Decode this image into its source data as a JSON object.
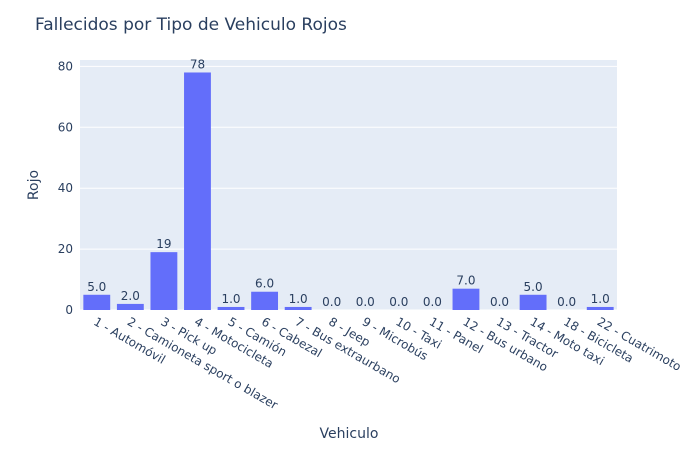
{
  "chart_data": {
    "type": "bar",
    "title": "Fallecidos por Tipo de Vehiculo Rojos",
    "xlabel": "Vehiculo",
    "ylabel": "Rojo",
    "categories": [
      "1 - Automóvil",
      "2 - Camioneta sport o blazer",
      "3 - Pick up",
      "4 - Motocicleta",
      "5 - Camión",
      "6 - Cabezal",
      "7 - Bus extraurbano",
      "8 - Jeep",
      "9 - Microbús",
      "10 - Taxi",
      "11 - Panel",
      "12 - Bus urbano",
      "13 - Tractor",
      "14 - Moto taxi",
      "18 - Bicicleta",
      "22 - Cuatrimoto"
    ],
    "values": [
      5,
      2,
      19,
      78,
      1,
      6,
      1,
      0,
      0,
      0,
      0,
      7,
      0,
      5,
      0,
      1
    ],
    "value_labels": [
      "5.0",
      "2.0",
      "19",
      "78",
      "1.0",
      "6.0",
      "1.0",
      "0.0",
      "0.0",
      "0.0",
      "0.0",
      "7.0",
      "0.0",
      "5.0",
      "0.0",
      "1.0"
    ],
    "y_ticks": [
      0,
      20,
      40,
      60,
      80
    ],
    "ylim": [
      0,
      82.1
    ],
    "grid": true,
    "bar_color": "#636efa",
    "plot_background": "#e5ecf6"
  }
}
